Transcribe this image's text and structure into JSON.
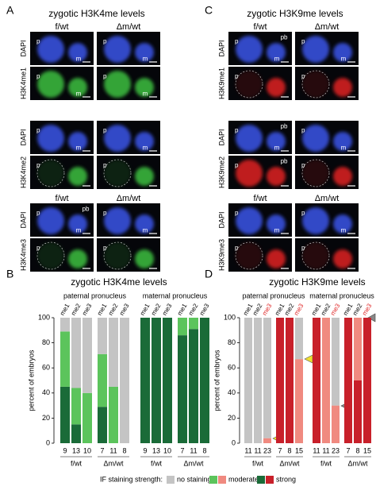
{
  "panel_labels": [
    "A",
    "B",
    "C",
    "D"
  ],
  "image_panels": [
    {
      "title": "zygotic H3K4me levels",
      "blocks": [
        {
          "columns": [
            "f/wt",
            "Δm/wt"
          ],
          "rows": [
            {
              "label": "DAPI",
              "color": "#3a55e8",
              "images": [
                [
                  "p",
                  "m"
                ],
                [
                  "p",
                  "m"
                ]
              ]
            },
            {
              "label": "H3K4me1",
              "color": "#3cc040",
              "images": [
                [
                  "p",
                  "m"
                ],
                [
                  "p",
                  "m"
                ]
              ]
            }
          ]
        },
        {
          "rows": [
            {
              "label": "DAPI",
              "color": "#3a55e8",
              "images": [
                [
                  "p",
                  "m"
                ],
                [
                  "p",
                  "m"
                ]
              ]
            },
            {
              "label": "H3K4me2",
              "color": "#3cc040",
              "images": [
                [
                  "p"
                ],
                [
                  "p"
                ]
              ]
            }
          ]
        },
        {
          "columns": [
            "f/wt",
            "Δm/wt"
          ],
          "rows": [
            {
              "label": "DAPI",
              "color": "#3a55e8",
              "images": [
                [
                  "p",
                  "pb",
                  "m"
                ],
                [
                  "p",
                  "m"
                ]
              ]
            },
            {
              "label": "H3K4me3",
              "color": "#3cc040",
              "images": [
                [
                  "p"
                ],
                [
                  "p"
                ]
              ]
            }
          ]
        }
      ]
    },
    {
      "title": "zygotic H3K9me levels",
      "blocks": [
        {
          "columns": [
            "f/wt",
            "Δm/wt"
          ],
          "rows": [
            {
              "label": "DAPI",
              "color": "#3a55e8",
              "images": [
                [
                  "p",
                  "pb",
                  "m"
                ],
                [
                  "p",
                  "m"
                ]
              ]
            },
            {
              "label": "H3K9me1",
              "color": "#e02424",
              "images": [
                [
                  "p"
                ],
                [
                  "p"
                ]
              ]
            }
          ]
        },
        {
          "rows": [
            {
              "label": "DAPI",
              "color": "#3a55e8",
              "images": [
                [
                  "p",
                  "pb",
                  "m"
                ],
                [
                  "p",
                  "m"
                ]
              ]
            },
            {
              "label": "H3K9me2",
              "color": "#e02424",
              "images": [
                [
                  "p",
                  "pb"
                ],
                [
                  "p"
                ]
              ]
            }
          ]
        },
        {
          "columns": [
            "f/wt",
            "Δm/wt"
          ],
          "rows": [
            {
              "label": "DAPI",
              "color": "#3a55e8",
              "images": [
                [
                  "p",
                  "m"
                ],
                [
                  "p",
                  "m"
                ]
              ]
            },
            {
              "label": "H3K9me3",
              "color": "#e02424",
              "images": [
                [
                  "p"
                ],
                [
                  "p"
                ]
              ]
            }
          ]
        }
      ]
    }
  ],
  "chart_data": [
    {
      "type": "stacked_bar",
      "title": "zygotic H3K4me levels",
      "ylabel": "percent of embryos",
      "ylim": [
        0,
        100
      ],
      "yticks": [
        0,
        20,
        40,
        60,
        80,
        100
      ],
      "groups": [
        "paternal pronucleus",
        "maternal pronucleus"
      ],
      "genotypes": [
        "f/wt",
        "Δm/wt",
        "f/wt",
        "Δm/wt"
      ],
      "categories": [
        "me1",
        "me2",
        "me3",
        "me1",
        "me2",
        "me3",
        "me1",
        "me2",
        "me3",
        "me1",
        "me2",
        "me3"
      ],
      "counts": [
        9,
        13,
        10,
        7,
        11,
        8,
        9,
        13,
        10,
        7,
        11,
        8
      ],
      "series": [
        {
          "color": "#1a6b38",
          "values": [
            45,
            15,
            0,
            29,
            0,
            0,
            100,
            100,
            100,
            86,
            91,
            100
          ]
        },
        {
          "color": "#5cc45c",
          "values": [
            44,
            29,
            40,
            42,
            45,
            0,
            0,
            0,
            0,
            14,
            9,
            0
          ]
        },
        {
          "color": "#c4c4c4",
          "values": [
            11,
            56,
            60,
            29,
            55,
            100,
            0,
            0,
            0,
            0,
            0,
            0
          ]
        }
      ]
    },
    {
      "type": "stacked_bar",
      "title": "zygotic H3K9me levels",
      "ylabel": "percent of embryos",
      "ylim": [
        0,
        100
      ],
      "yticks": [
        0,
        20,
        40,
        60,
        80,
        100
      ],
      "groups": [
        "paternal pronucleus",
        "maternal pronucleus"
      ],
      "genotypes": [
        "f/wt",
        "Δm/wt",
        "f/wt",
        "Δm/wt"
      ],
      "categories": [
        "me1",
        "me2",
        "me3",
        "me1",
        "me2",
        "me3",
        "me1",
        "me2",
        "me3",
        "me1",
        "me2",
        "me3"
      ],
      "category_colors": [
        "#000000",
        "#000000",
        "#e02424",
        "#000000",
        "#000000",
        "#e02424",
        "#000000",
        "#000000",
        "#e02424",
        "#000000",
        "#000000",
        "#e02424"
      ],
      "counts": [
        11,
        11,
        23,
        7,
        8,
        15,
        11,
        11,
        23,
        7,
        8,
        15
      ],
      "series": [
        {
          "color": "#c8202a",
          "values": [
            0,
            0,
            0,
            100,
            100,
            0,
            100,
            0,
            0,
            100,
            50,
            100
          ]
        },
        {
          "color": "#f08a80",
          "values": [
            0,
            0,
            4,
            0,
            0,
            67,
            0,
            100,
            30,
            0,
            50,
            0
          ]
        },
        {
          "color": "#c4c4c4",
          "values": [
            100,
            100,
            96,
            0,
            0,
            33,
            0,
            0,
            70,
            0,
            0,
            0
          ]
        }
      ]
    }
  ],
  "legend": {
    "title": "IF staining strength:",
    "entries": [
      "no staining",
      "moderate",
      "strong"
    ]
  }
}
